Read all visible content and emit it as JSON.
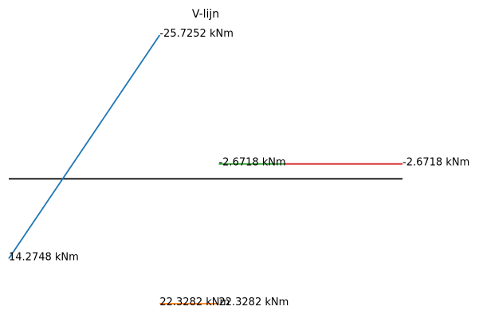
{
  "chart_data": {
    "type": "line",
    "title": "V-lijn",
    "xlabel": "",
    "ylabel": "",
    "grid": false,
    "axes_visible": false,
    "baseline": {
      "y": 0,
      "x_range": [
        0,
        6
      ],
      "color": "#000000"
    },
    "xlim": [
      0,
      6
    ],
    "ylim": [
      -25.7252,
      22.3282
    ],
    "y_inverted": true,
    "series": [
      {
        "color": "#1f77b4",
        "x": [
          0,
          2.3
        ],
        "y": [
          14.2748,
          -25.7252
        ]
      },
      {
        "color": "#ff7f0e",
        "x": [
          2.3,
          3.2
        ],
        "y": [
          22.3282,
          22.3282
        ]
      },
      {
        "color": "#2ca02c",
        "x": [
          3.2,
          4.2
        ],
        "y": [
          -2.6718,
          -2.6718
        ]
      },
      {
        "color": "#d62728",
        "x": [
          4.2,
          6.0
        ],
        "y": [
          -2.6718,
          -2.6718
        ]
      }
    ],
    "annotations": [
      {
        "text": "14.2748 kNm",
        "x": 0,
        "y": 14.2748
      },
      {
        "text": "-25.7252 kNm",
        "x": 2.3,
        "y": -25.7252
      },
      {
        "text": "22.3282 kNm",
        "x": 2.3,
        "y": 22.3282
      },
      {
        "text": "22.3282 kNm",
        "x": 3.2,
        "y": 22.3282
      },
      {
        "text": "-2.6718 kNm",
        "x": 3.2,
        "y": -2.6718
      },
      {
        "text": "-2.6718 kNm",
        "x": 6.0,
        "y": -2.6718
      }
    ]
  }
}
